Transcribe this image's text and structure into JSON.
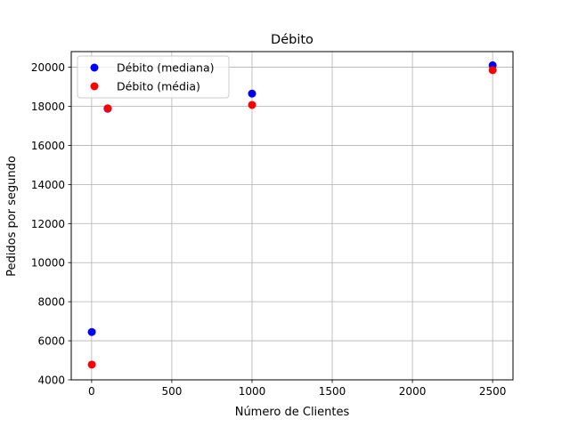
{
  "chart_data": {
    "type": "scatter",
    "title": "Débito",
    "xlabel": "Número de Clientes",
    "ylabel": "Pedidos por segundo",
    "xlim": [
      -127,
      2627
    ],
    "ylim": [
      4000,
      20800
    ],
    "xticks": [
      0,
      500,
      1000,
      1500,
      2000,
      2500
    ],
    "yticks": [
      4000,
      6000,
      8000,
      10000,
      12000,
      14000,
      16000,
      18000,
      20000
    ],
    "grid": true,
    "legend_position": "top-left",
    "series": [
      {
        "name": "Débito (mediana)",
        "color": "#0000ff",
        "points": [
          {
            "x": 1,
            "y": 6450
          },
          {
            "x": 100,
            "y": 17880
          },
          {
            "x": 1000,
            "y": 18650
          },
          {
            "x": 2500,
            "y": 20100
          }
        ]
      },
      {
        "name": "Débito (média)",
        "color": "#ff0000",
        "points": [
          {
            "x": 1,
            "y": 4780
          },
          {
            "x": 100,
            "y": 17900
          },
          {
            "x": 1000,
            "y": 18070
          },
          {
            "x": 2500,
            "y": 19850
          }
        ]
      }
    ]
  }
}
